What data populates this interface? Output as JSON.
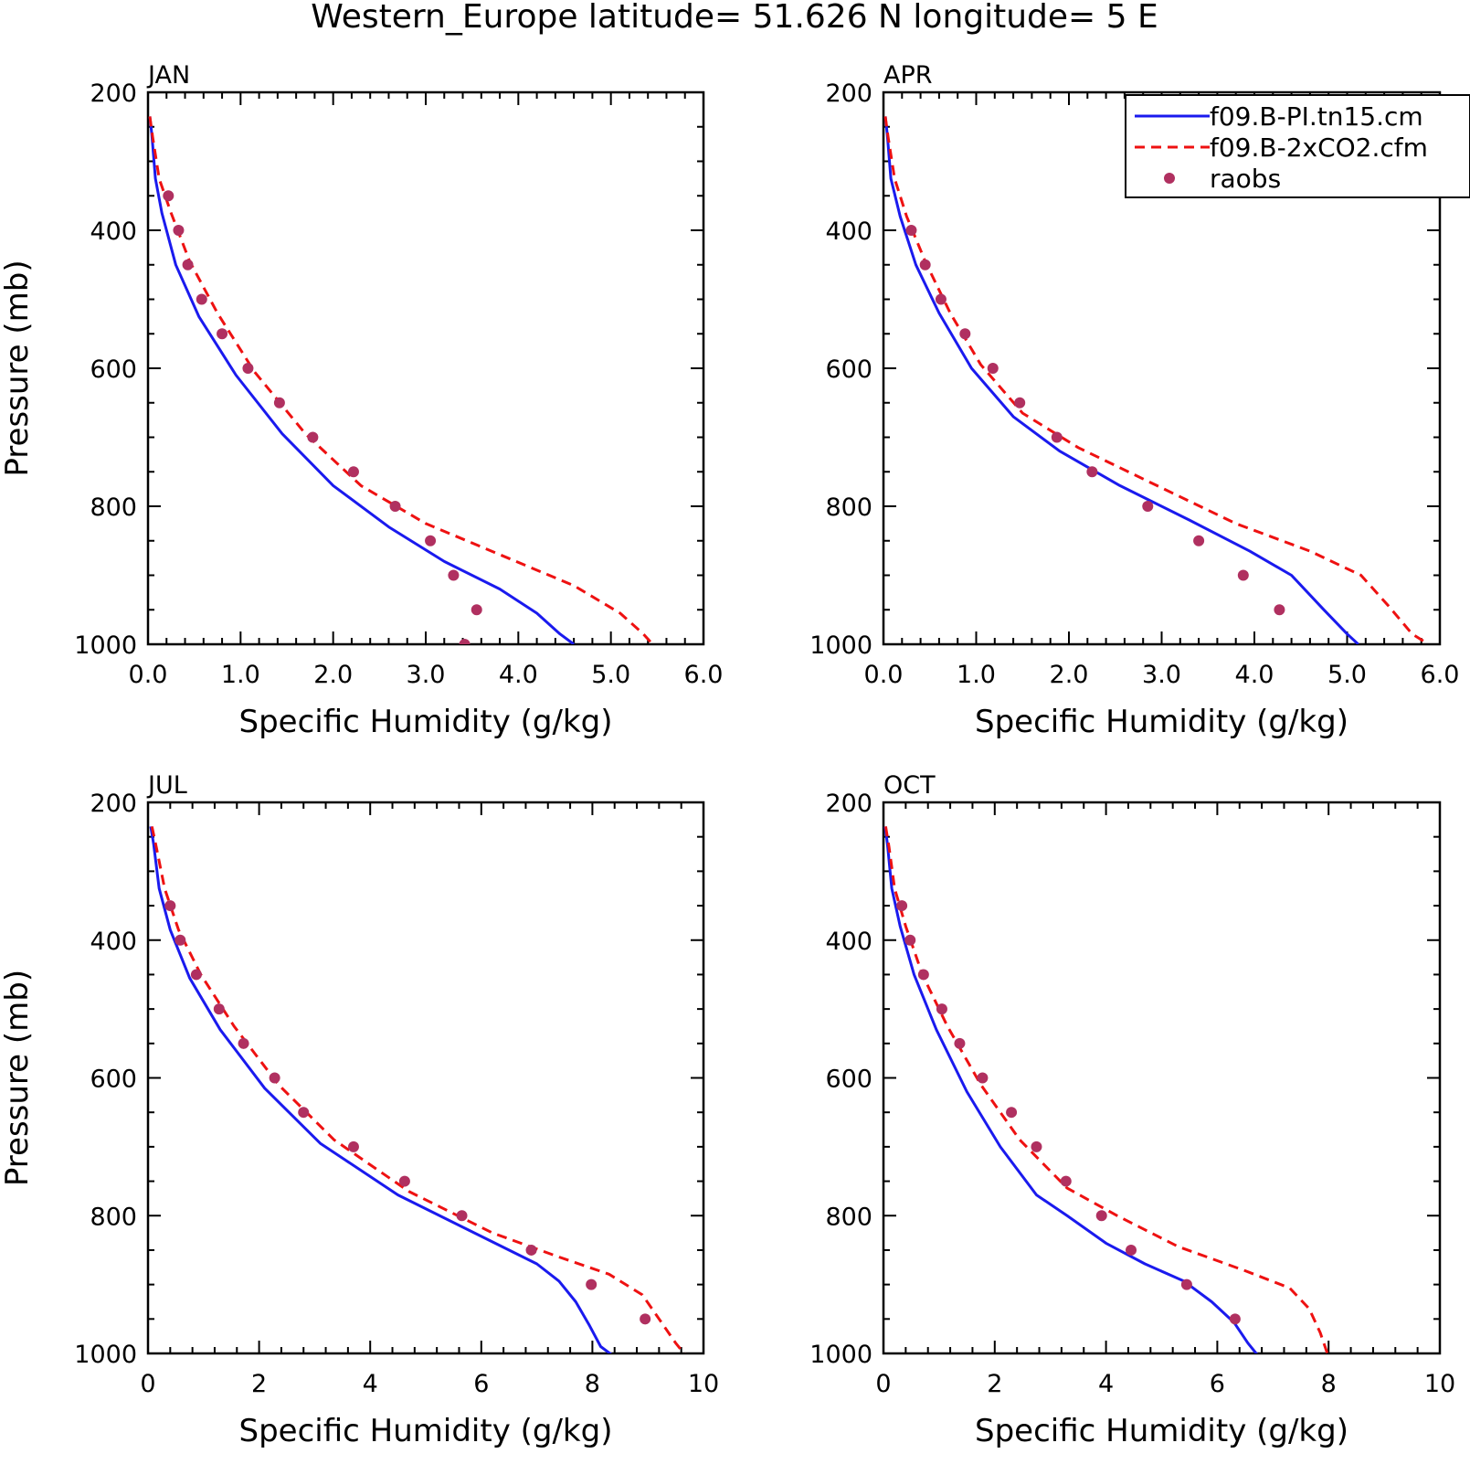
{
  "figure": {
    "title": "Western_Europe  latitude= 51.626 N longitude= 5 E"
  },
  "colors": {
    "pi": "#1a1aee",
    "co2": "#ee1111",
    "raobs": "#b03060"
  },
  "legend": {
    "placement": "top-right of APR panel",
    "entries": [
      {
        "label": "f09.B-PI.tn15.cm",
        "style": "solid",
        "color_key": "pi"
      },
      {
        "label": "f09.B-2xCO2.cfm",
        "style": "dashed",
        "color_key": "co2"
      },
      {
        "label": "raobs",
        "style": "dot",
        "color_key": "raobs"
      }
    ]
  },
  "chart_data": [
    {
      "type": "line",
      "panel": "JAN",
      "xlabel": "Specific Humidity (g/kg)",
      "ylabel": "Pressure (mb)",
      "xlim": [
        0,
        6
      ],
      "ylim": [
        1000,
        200
      ],
      "y_reversed": true,
      "xticks": [
        0,
        1,
        2,
        3,
        4,
        5,
        6
      ],
      "xtick_labels": [
        "0.0",
        "1.0",
        "2.0",
        "3.0",
        "4.0",
        "5.0",
        "6.0"
      ],
      "yticks": [
        200,
        400,
        600,
        800,
        1000
      ],
      "ytick_labels": [
        "200",
        "400",
        "600",
        "800",
        "1000"
      ],
      "series": [
        {
          "name": "f09.B-PI.tn15.cm",
          "style": "solid",
          "x": [
            0.02,
            0.04,
            0.08,
            0.15,
            0.3,
            0.55,
            0.95,
            1.45,
            2.0,
            2.6,
            3.2,
            3.8,
            4.2,
            4.45,
            4.6
          ],
          "y": [
            235,
            260,
            325,
            375,
            450,
            525,
            610,
            695,
            770,
            830,
            880,
            920,
            955,
            985,
            1000
          ]
        },
        {
          "name": "f09.B-2xCO2.cfm",
          "style": "dashed",
          "x": [
            0.02,
            0.05,
            0.12,
            0.25,
            0.45,
            0.75,
            1.15,
            1.7,
            2.3,
            3.0,
            3.8,
            4.6,
            5.1,
            5.35,
            5.45
          ],
          "y": [
            235,
            265,
            325,
            375,
            445,
            520,
            605,
            695,
            770,
            825,
            870,
            915,
            955,
            985,
            1000
          ]
        },
        {
          "name": "raobs",
          "style": "dot",
          "x": [
            0.22,
            0.33,
            0.43,
            0.58,
            0.8,
            1.08,
            1.42,
            1.78,
            2.22,
            2.67,
            3.05,
            3.3,
            3.55,
            3.42
          ],
          "y": [
            350,
            400,
            450,
            500,
            550,
            600,
            650,
            700,
            750,
            800,
            850,
            900,
            950,
            1000
          ]
        }
      ]
    },
    {
      "type": "line",
      "panel": "APR",
      "xlabel": "Specific Humidity (g/kg)",
      "ylabel": "",
      "xlim": [
        0,
        6
      ],
      "ylim": [
        1000,
        200
      ],
      "y_reversed": true,
      "xticks": [
        0,
        1,
        2,
        3,
        4,
        5,
        6
      ],
      "xtick_labels": [
        "0.0",
        "1.0",
        "2.0",
        "3.0",
        "4.0",
        "5.0",
        "6.0"
      ],
      "yticks": [
        200,
        400,
        600,
        800,
        1000
      ],
      "ytick_labels": [
        "200",
        "400",
        "600",
        "800",
        "1000"
      ],
      "series": [
        {
          "name": "f09.B-PI.tn15.cm",
          "style": "solid",
          "x": [
            0.02,
            0.04,
            0.08,
            0.18,
            0.35,
            0.6,
            0.95,
            1.4,
            1.9,
            2.55,
            3.3,
            3.95,
            4.4,
            4.75,
            5.0,
            5.12
          ],
          "y": [
            235,
            260,
            325,
            380,
            450,
            520,
            600,
            670,
            720,
            770,
            820,
            865,
            900,
            950,
            985,
            1000
          ]
        },
        {
          "name": "f09.B-2xCO2.cfm",
          "style": "dashed",
          "x": [
            0.02,
            0.05,
            0.12,
            0.25,
            0.45,
            0.72,
            1.05,
            1.5,
            2.1,
            2.95,
            3.8,
            4.6,
            5.15,
            5.45,
            5.7,
            5.88
          ],
          "y": [
            235,
            265,
            325,
            380,
            445,
            520,
            595,
            665,
            715,
            770,
            825,
            865,
            900,
            945,
            985,
            1000
          ]
        },
        {
          "name": "raobs",
          "style": "dot",
          "x": [
            0.3,
            0.45,
            0.62,
            0.88,
            1.18,
            1.47,
            1.87,
            2.25,
            2.85,
            3.4,
            3.88,
            4.27
          ],
          "y": [
            400,
            450,
            500,
            550,
            600,
            650,
            700,
            750,
            800,
            850,
            900,
            950
          ]
        }
      ]
    },
    {
      "type": "line",
      "panel": "JUL",
      "xlabel": "Specific Humidity (g/kg)",
      "ylabel": "Pressure (mb)",
      "xlim": [
        0,
        10
      ],
      "ylim": [
        1000,
        200
      ],
      "y_reversed": true,
      "xticks": [
        0,
        2,
        4,
        6,
        8,
        10
      ],
      "xtick_labels": [
        "0",
        "2",
        "4",
        "6",
        "8",
        "10"
      ],
      "yticks": [
        200,
        400,
        600,
        800,
        1000
      ],
      "ytick_labels": [
        "200",
        "400",
        "600",
        "800",
        "1000"
      ],
      "series": [
        {
          "name": "f09.B-PI.tn15.cm",
          "style": "solid",
          "x": [
            0.05,
            0.1,
            0.2,
            0.4,
            0.75,
            1.3,
            2.1,
            3.1,
            4.5,
            6.0,
            7.0,
            7.4,
            7.7,
            7.95,
            8.15,
            8.4
          ],
          "y": [
            235,
            260,
            325,
            385,
            455,
            530,
            615,
            695,
            770,
            830,
            870,
            895,
            925,
            960,
            990,
            1005
          ]
        },
        {
          "name": "f09.B-2xCO2.cfm",
          "style": "dashed",
          "x": [
            0.07,
            0.15,
            0.3,
            0.55,
            0.95,
            1.55,
            2.35,
            3.35,
            4.7,
            6.2,
            7.4,
            8.3,
            8.9,
            9.2,
            9.5,
            9.7
          ],
          "y": [
            235,
            265,
            325,
            385,
            450,
            525,
            610,
            690,
            765,
            825,
            860,
            885,
            915,
            950,
            985,
            1005
          ]
        },
        {
          "name": "raobs",
          "style": "dot",
          "x": [
            0.4,
            0.58,
            0.87,
            1.28,
            1.72,
            2.28,
            2.8,
            3.7,
            4.62,
            5.65,
            6.9,
            7.98,
            8.95
          ],
          "y": [
            350,
            400,
            450,
            500,
            550,
            600,
            650,
            700,
            750,
            800,
            850,
            900,
            950
          ]
        }
      ]
    },
    {
      "type": "line",
      "panel": "OCT",
      "xlabel": "Specific Humidity (g/kg)",
      "ylabel": "",
      "xlim": [
        0,
        10
      ],
      "ylim": [
        1000,
        200
      ],
      "y_reversed": true,
      "xticks": [
        0,
        2,
        4,
        6,
        8,
        10
      ],
      "xtick_labels": [
        "0",
        "2",
        "4",
        "6",
        "8",
        "10"
      ],
      "yticks": [
        200,
        400,
        600,
        800,
        1000
      ],
      "ytick_labels": [
        "200",
        "400",
        "600",
        "800",
        "1000"
      ],
      "series": [
        {
          "name": "f09.B-PI.tn15.cm",
          "style": "solid",
          "x": [
            0.03,
            0.07,
            0.15,
            0.3,
            0.55,
            0.95,
            1.5,
            2.1,
            2.75,
            3.3,
            4.0,
            4.7,
            5.4,
            5.9,
            6.3,
            6.55,
            6.75
          ],
          "y": [
            235,
            260,
            325,
            380,
            450,
            530,
            620,
            700,
            770,
            800,
            840,
            870,
            895,
            925,
            955,
            985,
            1005
          ]
        },
        {
          "name": "f09.B-2xCO2.cfm",
          "style": "dashed",
          "x": [
            0.04,
            0.1,
            0.2,
            0.4,
            0.7,
            1.15,
            1.75,
            2.45,
            3.3,
            4.2,
            5.3,
            6.5,
            7.3,
            7.65,
            7.85,
            8.0
          ],
          "y": [
            235,
            265,
            325,
            380,
            450,
            525,
            610,
            690,
            760,
            800,
            845,
            880,
            905,
            935,
            970,
            1005
          ]
        },
        {
          "name": "raobs",
          "style": "dot",
          "x": [
            0.33,
            0.48,
            0.72,
            1.05,
            1.37,
            1.78,
            2.3,
            2.75,
            3.28,
            3.92,
            4.45,
            5.45,
            6.32
          ],
          "y": [
            350,
            400,
            450,
            500,
            550,
            600,
            650,
            700,
            750,
            800,
            850,
            900,
            950
          ]
        }
      ]
    }
  ]
}
